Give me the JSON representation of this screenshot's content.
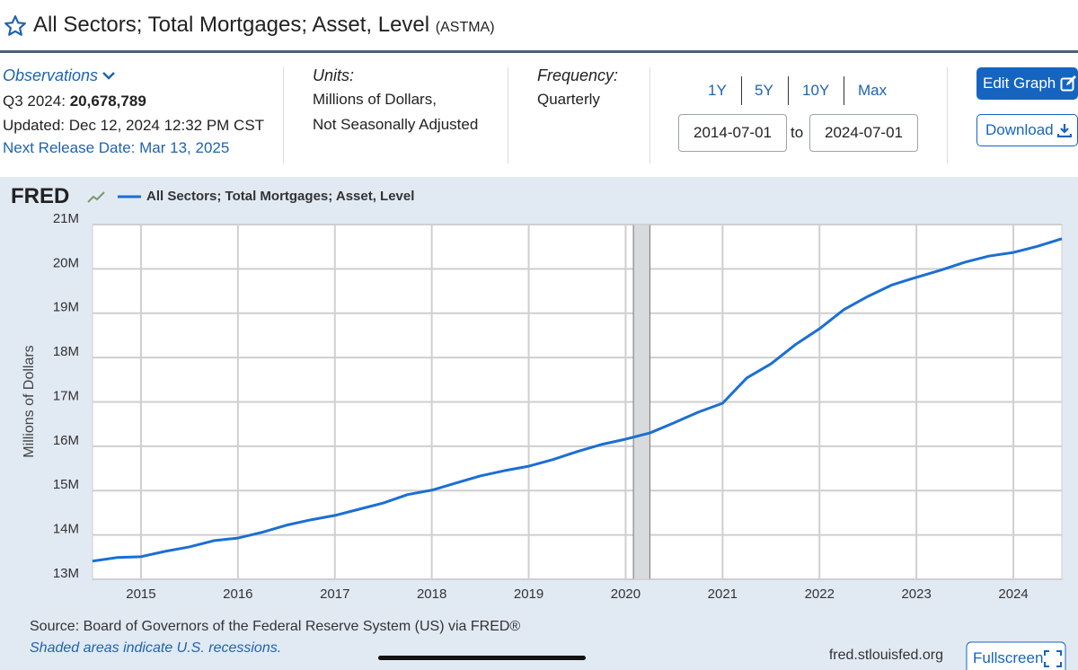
{
  "header": {
    "title": "All Sectors; Total Mortgages; Asset, Level",
    "series_id": "(ASTMA)"
  },
  "info": {
    "observations_label": "Observations",
    "observation_period": "Q3 2024:",
    "observation_value": "20,678,789",
    "updated": "Updated: Dec 12, 2024 12:32 PM CST",
    "next_release": "Next Release Date: Mar 13, 2025",
    "units_label": "Units:",
    "units_line1": "Millions of Dollars,",
    "units_line2": "Not Seasonally Adjusted",
    "frequency_label": "Frequency:",
    "frequency": "Quarterly"
  },
  "controls": {
    "ranges": [
      "1Y",
      "5Y",
      "10Y",
      "Max"
    ],
    "start_date": "2014-07-01",
    "to": "to",
    "end_date": "2024-07-01",
    "edit_graph": "Edit Graph",
    "download": "Download"
  },
  "chart_data": {
    "type": "line",
    "logo": "FRED",
    "y_label": "Millions of Dollars",
    "x": [
      2014.5,
      2014.75,
      2015,
      2015.25,
      2015.5,
      2015.75,
      2016,
      2016.25,
      2016.5,
      2016.75,
      2017,
      2017.25,
      2017.5,
      2017.75,
      2018,
      2018.25,
      2018.5,
      2018.75,
      2019,
      2019.25,
      2019.5,
      2019.75,
      2020,
      2020.25,
      2020.5,
      2020.75,
      2021,
      2021.25,
      2021.5,
      2021.75,
      2022,
      2022.25,
      2022.5,
      2022.75,
      2023,
      2023.25,
      2023.5,
      2023.75,
      2024,
      2024.25,
      2024.5
    ],
    "series": [
      {
        "name": "All Sectors; Total Mortgages; Asset, Level",
        "color": "#1b6fd2",
        "values": [
          13410000,
          13490000,
          13510000,
          13630000,
          13730000,
          13870000,
          13930000,
          14060000,
          14220000,
          14340000,
          14440000,
          14580000,
          14720000,
          14910000,
          15010000,
          15170000,
          15330000,
          15450000,
          15550000,
          15700000,
          15880000,
          16040000,
          16160000,
          16300000,
          16530000,
          16770000,
          16970000,
          17540000,
          17860000,
          18290000,
          18650000,
          19080000,
          19380000,
          19640000,
          19810000,
          19970000,
          20150000,
          20290000,
          20370000,
          20510000,
          20678789
        ]
      }
    ],
    "xlim": [
      2014.5,
      2024.5
    ],
    "xticks": [
      2015,
      2016,
      2017,
      2018,
      2019,
      2020,
      2021,
      2022,
      2023,
      2024
    ],
    "ylim": [
      13000000,
      21000000
    ],
    "yticks": [
      {
        "value": 13000000,
        "label": "13M"
      },
      {
        "value": 14000000,
        "label": "14M"
      },
      {
        "value": 15000000,
        "label": "15M"
      },
      {
        "value": 16000000,
        "label": "16M"
      },
      {
        "value": 17000000,
        "label": "17M"
      },
      {
        "value": 18000000,
        "label": "18M"
      },
      {
        "value": 19000000,
        "label": "19M"
      },
      {
        "value": 20000000,
        "label": "20M"
      },
      {
        "value": 21000000,
        "label": "21M"
      }
    ],
    "grid": true,
    "recessions": [
      {
        "start": 2020.08,
        "end": 2020.25
      }
    ],
    "source": "Source: Board of Governors of the Federal Reserve System (US) via FRED®",
    "note": "Shaded areas indicate U.S. recessions.",
    "site": "fred.stlouisfed.org",
    "fullscreen": "Fullscreen"
  }
}
